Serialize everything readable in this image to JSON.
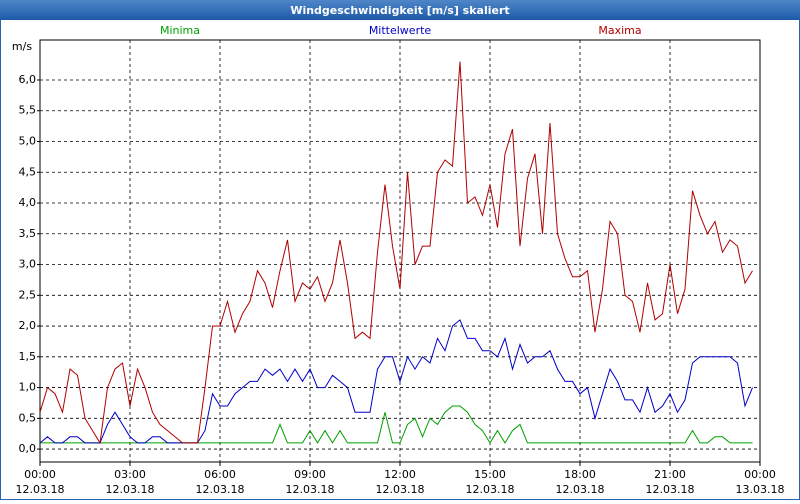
{
  "chart_data": {
    "type": "line",
    "title": "Windgeschwindigkeit [m/s] skaliert",
    "y_label": "m/s",
    "x": [
      0,
      0.25,
      0.5,
      0.75,
      1,
      1.25,
      1.5,
      1.75,
      2,
      2.25,
      2.5,
      2.75,
      3,
      3.25,
      3.5,
      3.75,
      4,
      4.25,
      4.5,
      4.75,
      5,
      5.25,
      5.5,
      5.75,
      6,
      6.25,
      6.5,
      6.75,
      7,
      7.25,
      7.5,
      7.75,
      8,
      8.25,
      8.5,
      8.75,
      9,
      9.25,
      9.5,
      9.75,
      10,
      10.25,
      10.5,
      10.75,
      11,
      11.25,
      11.5,
      11.75,
      12,
      12.25,
      12.5,
      12.75,
      13,
      13.25,
      13.5,
      13.75,
      14,
      14.25,
      14.5,
      14.75,
      15,
      15.25,
      15.5,
      15.75,
      16,
      16.25,
      16.5,
      16.75,
      17,
      17.25,
      17.5,
      17.75,
      18,
      18.25,
      18.5,
      18.75,
      19,
      19.25,
      19.5,
      19.75,
      20,
      20.25,
      20.5,
      20.75,
      21,
      21.25,
      21.5,
      21.75,
      22,
      22.25,
      22.5,
      22.75,
      23,
      23.25,
      23.5,
      23.75,
      24
    ],
    "series": [
      {
        "name": "Minima",
        "color": "#00a000",
        "values": [
          0.1,
          0.1,
          0.1,
          0.1,
          0.1,
          0.1,
          0.1,
          0.1,
          0.1,
          0.1,
          0.1,
          0.1,
          0.1,
          0.1,
          0.1,
          0.1,
          0.1,
          0.1,
          0.1,
          0.1,
          0.1,
          0.1,
          0.1,
          0.1,
          0.1,
          0.1,
          0.1,
          0.1,
          0.1,
          0.1,
          0.1,
          0.1,
          0.4,
          0.1,
          0.1,
          0.1,
          0.3,
          0.1,
          0.3,
          0.1,
          0.3,
          0.1,
          0.1,
          0.1,
          0.1,
          0.1,
          0.6,
          0.1,
          0.1,
          0.4,
          0.5,
          0.2,
          0.5,
          0.4,
          0.6,
          0.7,
          0.7,
          0.6,
          0.4,
          0.3,
          0.1,
          0.3,
          0.1,
          0.3,
          0.4,
          0.1,
          0.1,
          0.1,
          0.1,
          0.1,
          0.1,
          0.1,
          0.1,
          0.1,
          0.1,
          0.1,
          0.1,
          0.1,
          0.1,
          0.1,
          0.1,
          0.1,
          0.1,
          0.1,
          0.1,
          0.1,
          0.1,
          0.3,
          0.1,
          0.1,
          0.2,
          0.2,
          0.1,
          0.1,
          0.1,
          0.1,
          null
        ]
      },
      {
        "name": "Mittelwerte",
        "color": "#0000c8",
        "values": [
          0.1,
          0.2,
          0.1,
          0.1,
          0.2,
          0.2,
          0.1,
          0.1,
          0.1,
          0.4,
          0.6,
          0.4,
          0.2,
          0.1,
          0.1,
          0.2,
          0.2,
          0.1,
          0.1,
          0.1,
          0.1,
          0.1,
          0.3,
          0.9,
          0.7,
          0.7,
          0.9,
          1.0,
          1.1,
          1.1,
          1.3,
          1.2,
          1.3,
          1.1,
          1.3,
          1.1,
          1.3,
          1.0,
          1.0,
          1.2,
          1.1,
          1.0,
          0.6,
          0.6,
          0.6,
          1.3,
          1.5,
          1.5,
          1.1,
          1.5,
          1.3,
          1.5,
          1.4,
          1.8,
          1.6,
          2.0,
          2.1,
          1.8,
          1.8,
          1.6,
          1.6,
          1.5,
          1.8,
          1.3,
          1.7,
          1.4,
          1.5,
          1.5,
          1.6,
          1.3,
          1.1,
          1.1,
          0.9,
          1.0,
          0.5,
          0.9,
          1.3,
          1.1,
          0.8,
          0.8,
          0.6,
          1.0,
          0.6,
          0.7,
          0.9,
          0.6,
          0.8,
          1.4,
          1.5,
          1.5,
          1.5,
          1.5,
          1.5,
          1.4,
          0.7,
          1.0,
          null
        ]
      },
      {
        "name": "Maxima",
        "color": "#b00000",
        "values": [
          0.6,
          1.0,
          0.9,
          0.6,
          1.3,
          1.2,
          0.5,
          0.3,
          0.1,
          1.0,
          1.3,
          1.4,
          0.7,
          1.3,
          1.0,
          0.6,
          0.4,
          0.3,
          0.2,
          0.1,
          0.1,
          0.1,
          1.0,
          2.0,
          2.0,
          2.4,
          1.9,
          2.2,
          2.4,
          2.9,
          2.7,
          2.3,
          2.9,
          3.4,
          2.4,
          2.7,
          2.6,
          2.8,
          2.4,
          2.7,
          3.4,
          2.7,
          1.8,
          1.9,
          1.8,
          3.2,
          4.3,
          3.3,
          2.6,
          4.5,
          3.0,
          3.3,
          3.3,
          4.5,
          4.7,
          4.6,
          6.3,
          4.0,
          4.1,
          3.8,
          4.3,
          3.6,
          4.8,
          5.2,
          3.3,
          4.4,
          4.8,
          3.5,
          5.3,
          3.5,
          3.1,
          2.8,
          2.8,
          2.9,
          1.9,
          2.6,
          3.7,
          3.5,
          2.5,
          2.4,
          1.9,
          2.7,
          2.1,
          2.2,
          3.0,
          2.2,
          2.6,
          4.2,
          3.8,
          3.5,
          3.7,
          3.2,
          3.4,
          3.3,
          2.7,
          2.9,
          null
        ]
      }
    ],
    "xlim": [
      0,
      24
    ],
    "xticks": [
      {
        "value": 0,
        "label": "00:00",
        "date": "12.03.18"
      },
      {
        "value": 3,
        "label": "03:00",
        "date": "12.03.18"
      },
      {
        "value": 6,
        "label": "06:00",
        "date": "12.03.18"
      },
      {
        "value": 9,
        "label": "09:00",
        "date": "12.03.18"
      },
      {
        "value": 12,
        "label": "12:00",
        "date": "12.03.18"
      },
      {
        "value": 15,
        "label": "15:00",
        "date": "12.03.18"
      },
      {
        "value": 18,
        "label": "18:00",
        "date": "12.03.18"
      },
      {
        "value": 21,
        "label": "21:00",
        "date": "12.03.18"
      },
      {
        "value": 24,
        "label": "00:00",
        "date": "13.03.18"
      }
    ],
    "ylim": [
      -0.21,
      6.65
    ],
    "yticks": [
      {
        "value": 0,
        "label": "0,0"
      },
      {
        "value": 0.5,
        "label": "0,5"
      },
      {
        "value": 1,
        "label": "1,0"
      },
      {
        "value": 1.5,
        "label": "1,5"
      },
      {
        "value": 2,
        "label": "2,0"
      },
      {
        "value": 2.5,
        "label": "2,5"
      },
      {
        "value": 3,
        "label": "3,0"
      },
      {
        "value": 3.5,
        "label": "3,5"
      },
      {
        "value": 4,
        "label": "4,0"
      },
      {
        "value": 4.5,
        "label": "4,5"
      },
      {
        "value": 5,
        "label": "5,0"
      },
      {
        "value": 5.5,
        "label": "5,5"
      },
      {
        "value": 6,
        "label": "6,0"
      }
    ],
    "grid": true
  }
}
